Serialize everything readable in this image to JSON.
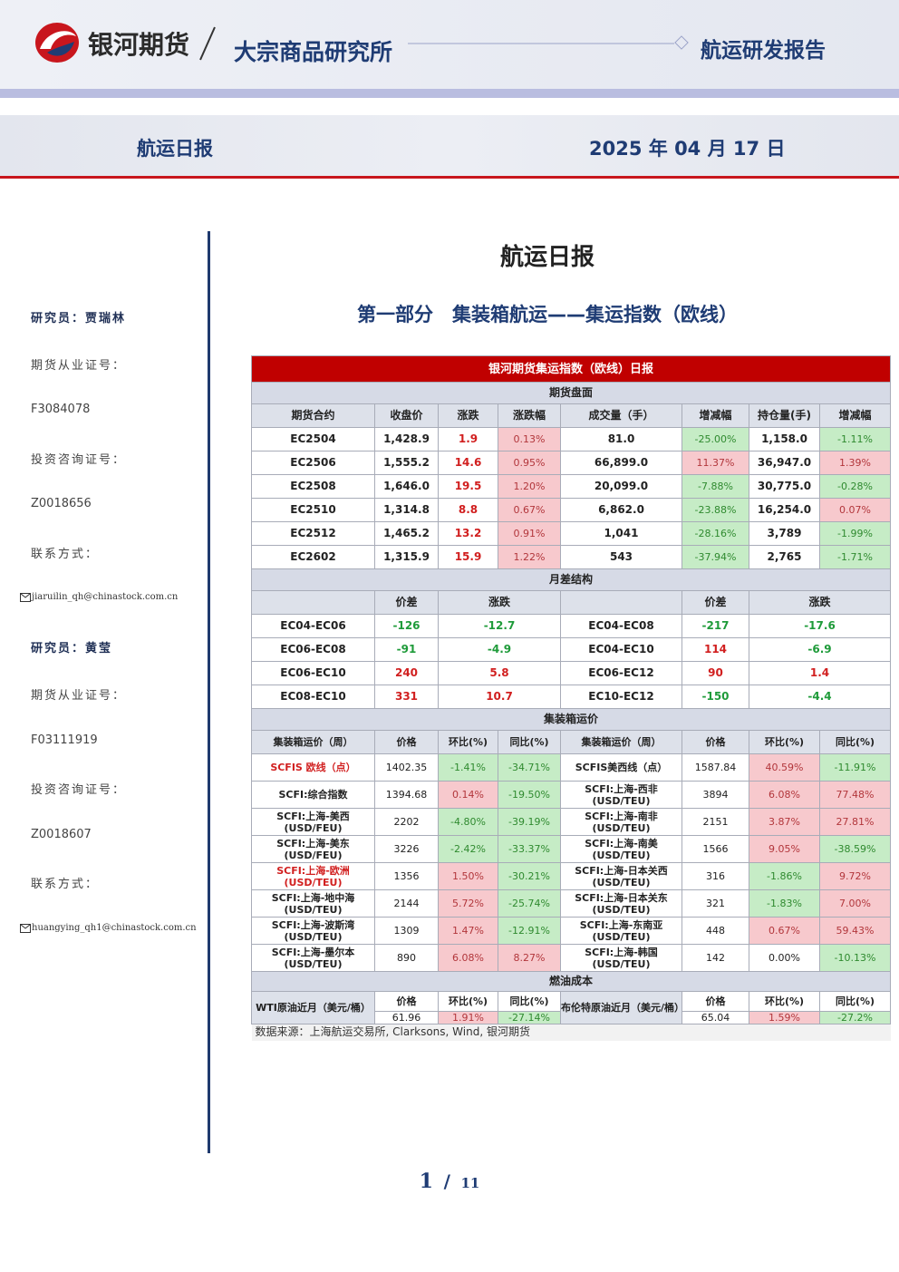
{
  "header": {
    "company": "银河期货",
    "institute": "大宗商品研究所",
    "report_type": "航运研发报告"
  },
  "banner": {
    "title": "航运日报",
    "date": "2025 年 04 月 17 日"
  },
  "sidebar": [
    "研究员：贾瑞林",
    "期货从业证号：",
    "F3084078",
    "投资咨询证号：",
    "Z0018656",
    "联系方式：",
    "jiaruilin_qh@chinastock.com.cn",
    "研究员：黄莹",
    "期货从业证号：",
    "F03111919",
    "投资咨询证号：",
    "Z0018607",
    "联系方式：",
    "huangying_qh1@chinastock.com.cn"
  ],
  "main": {
    "title": "航运日报",
    "section": "第一部分　集装箱航运——集运指数（欧线）"
  },
  "table": {
    "title": "银河期货集运指数（欧线）日报",
    "futures": {
      "heading": "期货盘面",
      "columns": [
        "期货合约",
        "收盘价",
        "涨跌",
        "涨跌幅",
        "成交量（手）",
        "增减幅",
        "持仓量(手)",
        "增减幅"
      ],
      "rows": [
        [
          "EC2504",
          "1,428.9",
          "1.9",
          "0.13%",
          "81.0",
          "-25.00%",
          "1,158.0",
          "-1.11%"
        ],
        [
          "EC2506",
          "1,555.2",
          "14.6",
          "0.95%",
          "66,899.0",
          "11.37%",
          "36,947.0",
          "1.39%"
        ],
        [
          "EC2508",
          "1,646.0",
          "19.5",
          "1.20%",
          "20,099.0",
          "-7.88%",
          "30,775.0",
          "-0.28%"
        ],
        [
          "EC2510",
          "1,314.8",
          "8.8",
          "0.67%",
          "6,862.0",
          "-23.88%",
          "16,254.0",
          "0.07%"
        ],
        [
          "EC2512",
          "1,465.2",
          "13.2",
          "0.91%",
          "1,041",
          "-28.16%",
          "3,789",
          "-1.99%"
        ],
        [
          "EC2602",
          "1,315.9",
          "15.9",
          "1.22%",
          "543",
          "-37.94%",
          "2,765",
          "-1.71%"
        ]
      ]
    },
    "spreads": {
      "heading": "月差结构",
      "columns": [
        "价差",
        "涨跌",
        "价差",
        "涨跌"
      ],
      "rows": [
        [
          "EC04-EC06",
          "-126",
          "-12.7",
          "EC04-EC08",
          "-217",
          "-17.6"
        ],
        [
          "EC06-EC08",
          "-91",
          "-4.9",
          "EC04-EC10",
          "114",
          "-6.9"
        ],
        [
          "EC06-EC10",
          "240",
          "5.8",
          "EC06-EC12",
          "90",
          "1.4"
        ],
        [
          "EC08-EC10",
          "331",
          "10.7",
          "EC10-EC12",
          "-150",
          "-4.4"
        ]
      ]
    },
    "freight": {
      "heading": "集装箱运价",
      "columns": [
        "集装箱运价（周）",
        "价格",
        "环比(%)",
        "同比(%)",
        "集装箱运价（周）",
        "价格",
        "环比(%)",
        "同比(%)"
      ],
      "rows": [
        [
          "SCFIS 欧线（点）",
          "1402.35",
          "-1.41%",
          "-34.71%",
          "SCFIS美西线（点）",
          "1587.84",
          "40.59%",
          "-11.91%"
        ],
        [
          "SCFI:综合指数",
          "1394.68",
          "0.14%",
          "-19.50%",
          "SCFI:上海-西非\n(USD/TEU)",
          "3894",
          "6.08%",
          "77.48%"
        ],
        [
          "SCFI:上海-美西\n(USD/FEU)",
          "2202",
          "-4.80%",
          "-39.19%",
          "SCFI:上海-南非\n(USD/TEU)",
          "2151",
          "3.87%",
          "27.81%"
        ],
        [
          "SCFI:上海-美东\n(USD/FEU)",
          "3226",
          "-2.42%",
          "-33.37%",
          "SCFI:上海-南美\n(USD/TEU)",
          "1566",
          "9.05%",
          "-38.59%"
        ],
        [
          "SCFI:上海-欧洲\n(USD/TEU)",
          "1356",
          "1.50%",
          "-30.21%",
          "SCFI:上海-日本关西\n(USD/TEU)",
          "316",
          "-1.86%",
          "9.72%"
        ],
        [
          "SCFI:上海-地中海\n(USD/TEU)",
          "2144",
          "5.72%",
          "-25.74%",
          "SCFI:上海-日本关东\n(USD/TEU)",
          "321",
          "-1.83%",
          "7.00%"
        ],
        [
          "SCFI:上海-波斯湾\n(USD/TEU)",
          "1309",
          "1.47%",
          "-12.91%",
          "SCFI:上海-东南亚\n(USD/TEU)",
          "448",
          "0.67%",
          "59.43%"
        ],
        [
          "SCFI:上海-墨尔本\n(USD/TEU)",
          "890",
          "6.08%",
          "8.27%",
          "SCFI:上海-韩国\n(USD/TEU)",
          "142",
          "0.00%",
          "-10.13%"
        ]
      ]
    },
    "fuel": {
      "heading": "燃油成本",
      "items": [
        {
          "name": "WTI原油近月（美元/桶）",
          "columns": [
            "价格",
            "环比(%)",
            "同比(%)"
          ],
          "values": [
            "61.96",
            "1.91%",
            "-27.14%"
          ]
        },
        {
          "name": "布伦特原油近月（美元/桶）",
          "columns": [
            "价格",
            "环比(%)",
            "同比(%)"
          ],
          "values": [
            "65.04",
            "1.59%",
            "-27.2%"
          ]
        }
      ]
    },
    "source": "数据来源：上海航运交易所, Clarksons, Wind, 银河期货"
  },
  "page": {
    "current": "1",
    "separator": "/",
    "total": "11"
  }
}
